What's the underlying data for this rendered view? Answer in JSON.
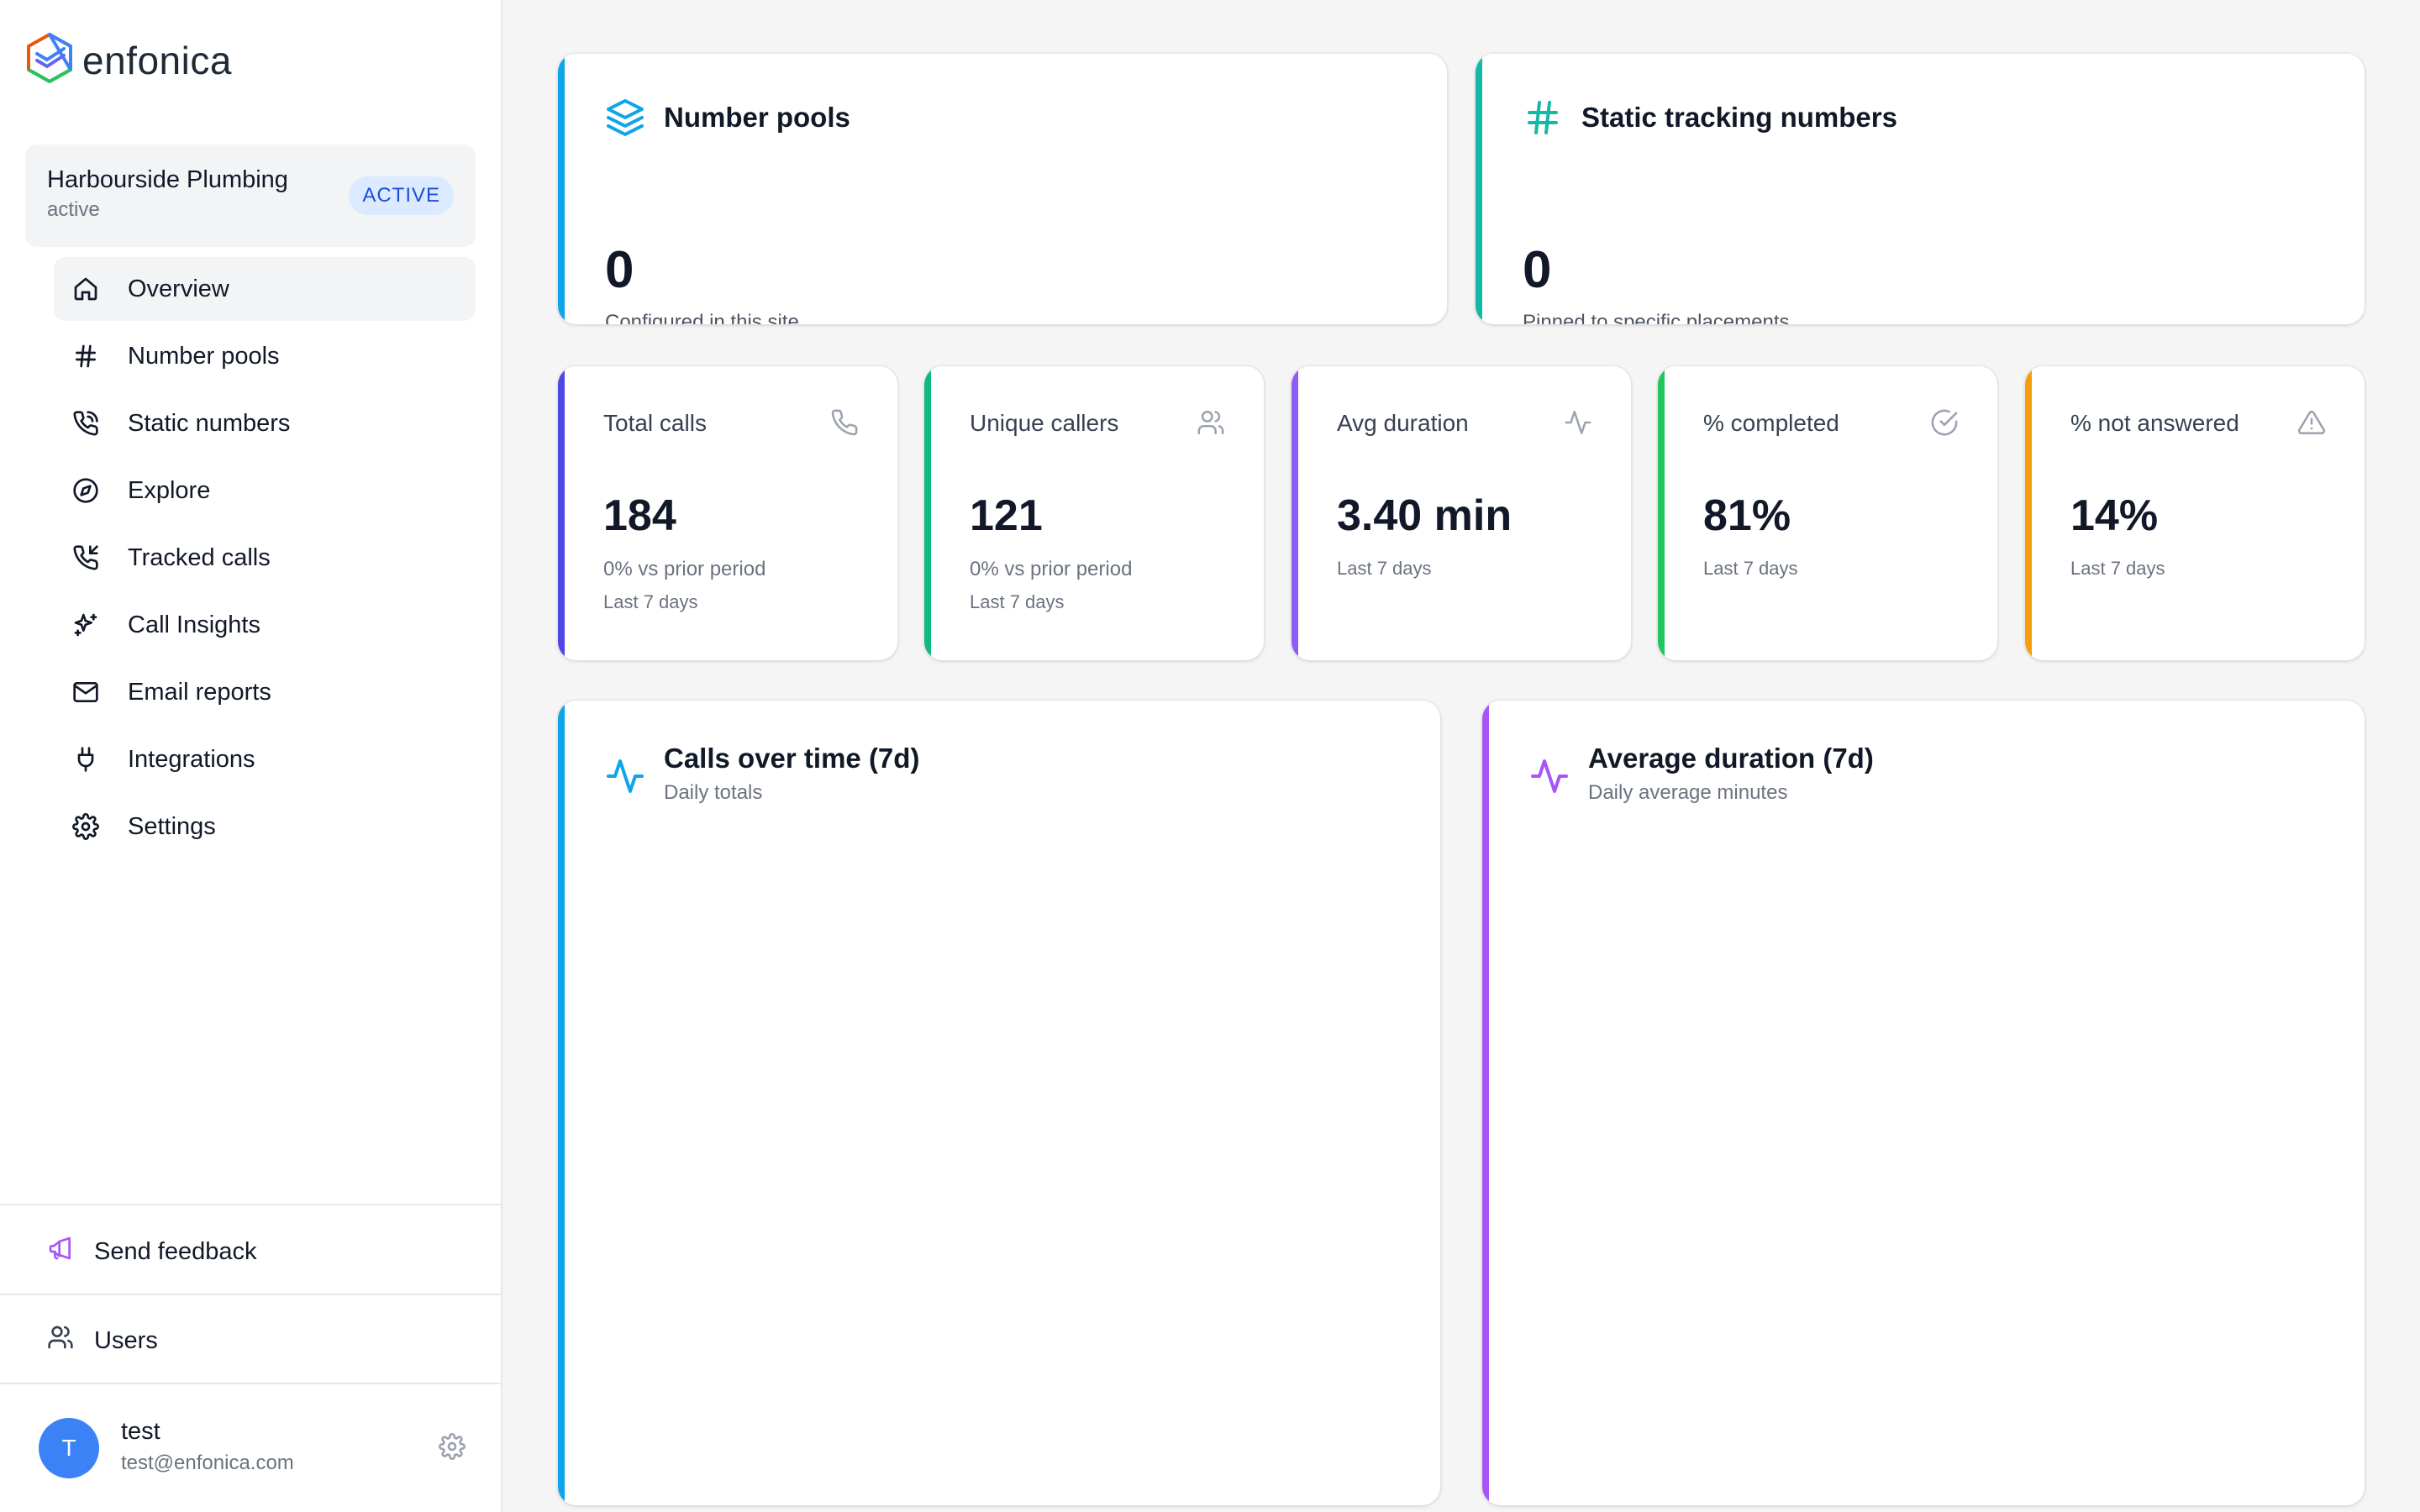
{
  "brand": {
    "name": "enfonica"
  },
  "site": {
    "name": "Harbourside Plumbing",
    "status": "active",
    "badge": "ACTIVE"
  },
  "nav": {
    "items": [
      {
        "label": "Overview",
        "icon": "home-icon",
        "active": true
      },
      {
        "label": "Number pools",
        "icon": "hash-icon"
      },
      {
        "label": "Static numbers",
        "icon": "phone-call-icon"
      },
      {
        "label": "Explore",
        "icon": "compass-icon"
      },
      {
        "label": "Tracked calls",
        "icon": "phone-incoming-icon"
      },
      {
        "label": "Call Insights",
        "icon": "sparkles-icon"
      },
      {
        "label": "Email reports",
        "icon": "mail-icon"
      },
      {
        "label": "Integrations",
        "icon": "plug-icon"
      },
      {
        "label": "Settings",
        "icon": "settings-icon"
      }
    ]
  },
  "footer": {
    "feedback": "Send feedback",
    "users": "Users",
    "user": {
      "initial": "T",
      "name": "test",
      "email": "test@enfonica.com"
    }
  },
  "summary": {
    "number_pools": {
      "title": "Number pools",
      "value": "0",
      "caption": "Configured in this site",
      "accent": "#0ea5e9"
    },
    "static_numbers": {
      "title": "Static tracking numbers",
      "value": "0",
      "caption": "Pinned to specific placements",
      "accent": "#14b8a6"
    }
  },
  "stats": [
    {
      "label": "Total calls",
      "value": "184",
      "sub1": "0% vs prior period",
      "sub2": "Last 7 days",
      "accent": "#4f46e5",
      "icon": "phone-icon"
    },
    {
      "label": "Unique callers",
      "value": "121",
      "sub1": "0% vs prior period",
      "sub2": "Last 7 days",
      "accent": "#10b981",
      "icon": "users-icon"
    },
    {
      "label": "Avg duration",
      "value": "3.40 min",
      "sub1": "Last 7 days",
      "accent": "#8b5cf6",
      "icon": "activity-icon"
    },
    {
      "label": "% completed",
      "value": "81%",
      "sub1": "Last 7 days",
      "accent": "#22c55e",
      "icon": "check-circle-icon"
    },
    {
      "label": "% not answered",
      "value": "14%",
      "sub1": "Last 7 days",
      "accent": "#f59e0b",
      "icon": "alert-triangle-icon"
    }
  ],
  "charts": [
    {
      "title": "Calls over time (7d)",
      "subtitle": "Daily totals",
      "accent": "#0ea5e9"
    },
    {
      "title": "Average duration (7d)",
      "subtitle": "Daily average minutes",
      "accent": "#a855f7"
    }
  ]
}
